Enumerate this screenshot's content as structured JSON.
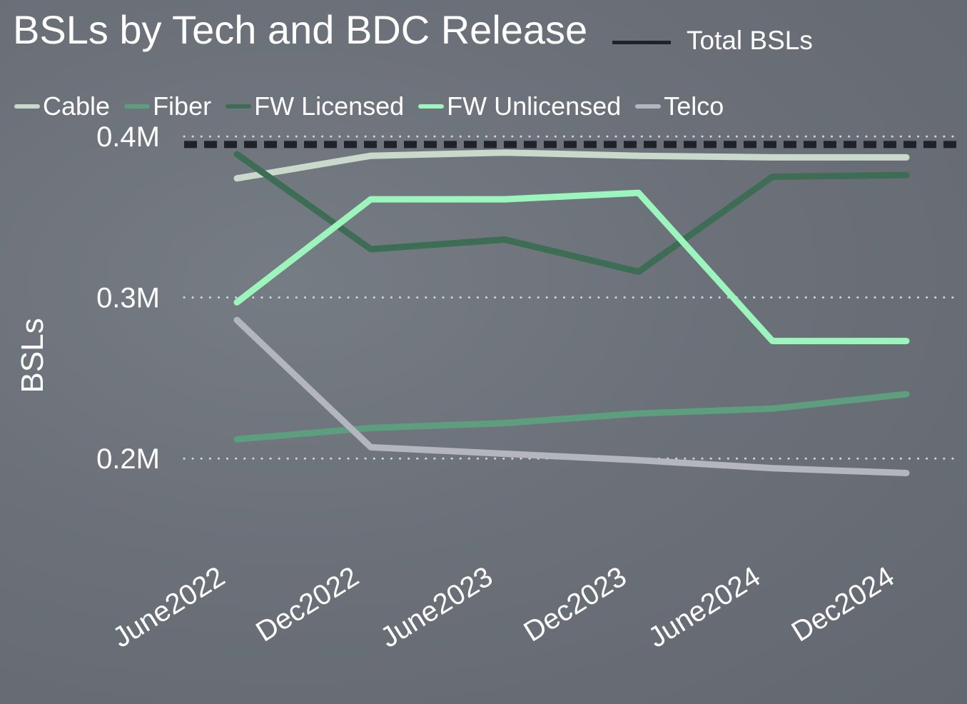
{
  "colors": {
    "total": "#1f2329",
    "cable": "#c9d9cc",
    "fiber": "#5d9e7f",
    "fw_licensed": "#3d6e55",
    "fw_unlicensed": "#9cf5bd",
    "telco": "#b4b6bf",
    "gridline": "#d2d5da"
  },
  "chart_data": {
    "type": "line",
    "title": "BSLs by Tech and BDC Release",
    "xlabel": "",
    "ylabel": "BSLs",
    "categories": [
      "June2022",
      "Dec2022",
      "June2023",
      "Dec2023",
      "June2024",
      "Dec2024"
    ],
    "ylim": [
      0.15,
      0.42
    ],
    "yticks": [
      0.2,
      0.3,
      0.4
    ],
    "ytick_labels": [
      "0.2M",
      "0.3M",
      "0.4M"
    ],
    "grid": "horizontal dotted",
    "legend_position": "top",
    "series": [
      {
        "name": "Cable",
        "key": "cable",
        "values": [
          0.374,
          0.388,
          0.39,
          0.388,
          0.387,
          0.387
        ]
      },
      {
        "name": "Fiber",
        "key": "fiber",
        "values": [
          0.212,
          0.219,
          0.222,
          0.228,
          0.231,
          0.24
        ]
      },
      {
        "name": "FW Licensed",
        "key": "fw_licensed",
        "values": [
          0.389,
          0.33,
          0.336,
          0.316,
          0.375,
          0.376
        ]
      },
      {
        "name": "FW Unlicensed",
        "key": "fw_unlicensed",
        "values": [
          0.297,
          0.361,
          0.361,
          0.365,
          0.273,
          0.273
        ]
      },
      {
        "name": "Telco",
        "key": "telco",
        "values": [
          0.286,
          0.207,
          0.203,
          0.199,
          0.194,
          0.191
        ]
      }
    ],
    "reference_line": {
      "name": "Total BSLs",
      "value": 0.395,
      "style": "dashed"
    }
  }
}
